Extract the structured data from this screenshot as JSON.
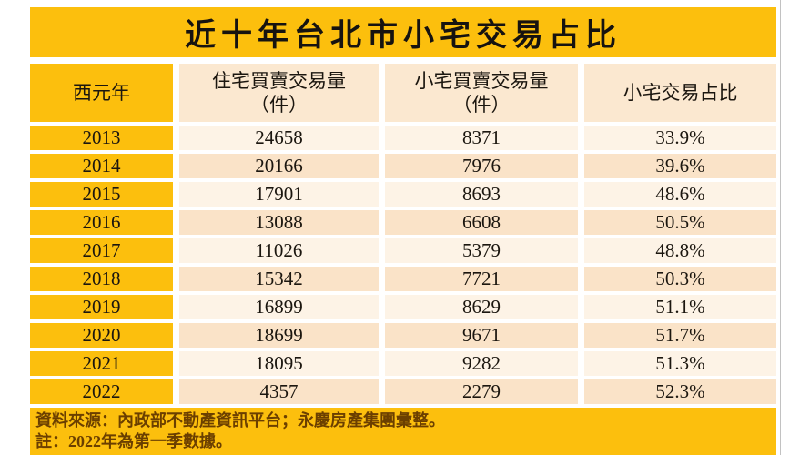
{
  "title": "近十年台北市小宅交易占比",
  "table": {
    "columns": {
      "year": "西元年",
      "total": "住宅買賣交易量\n（件）",
      "small": "小宅買賣交易量\n（件）",
      "ratio": "小宅交易占比"
    },
    "rows": [
      {
        "year": "2013",
        "total": "24658",
        "small": "8371",
        "ratio": "33.9%"
      },
      {
        "year": "2014",
        "total": "20166",
        "small": "7976",
        "ratio": "39.6%"
      },
      {
        "year": "2015",
        "total": "17901",
        "small": "8693",
        "ratio": "48.6%"
      },
      {
        "year": "2016",
        "total": "13088",
        "small": "6608",
        "ratio": "50.5%"
      },
      {
        "year": "2017",
        "total": "11026",
        "small": "5379",
        "ratio": "48.8%"
      },
      {
        "year": "2018",
        "total": "15342",
        "small": "7721",
        "ratio": "50.3%"
      },
      {
        "year": "2019",
        "total": "16899",
        "small": "8629",
        "ratio": "51.1%"
      },
      {
        "year": "2020",
        "total": "18699",
        "small": "9671",
        "ratio": "51.7%"
      },
      {
        "year": "2021",
        "total": "18095",
        "small": "9282",
        "ratio": "51.3%"
      },
      {
        "year": "2022",
        "total": "4357",
        "small": "2279",
        "ratio": "52.3%"
      }
    ]
  },
  "footer": {
    "source": "資料來源：內政部不動產資訊平台；永慶房產集團彙整。",
    "note": "註：2022年為第一季數據。"
  },
  "colors": {
    "accent_yellow": "#FCBF0D",
    "header_peach": "#FBE8D0",
    "row_light": "#FDF3E6",
    "row_peach": "#FAE3C8",
    "footer_text": "#6B3F00"
  },
  "chart_data": {
    "type": "table",
    "title": "近十年台北市小宅交易占比",
    "columns": [
      "西元年",
      "住宅買賣交易量（件）",
      "小宅買賣交易量（件）",
      "小宅交易占比"
    ],
    "rows": [
      [
        2013,
        24658,
        8371,
        "33.9%"
      ],
      [
        2014,
        20166,
        7976,
        "39.6%"
      ],
      [
        2015,
        17901,
        8693,
        "48.6%"
      ],
      [
        2016,
        13088,
        6608,
        "50.5%"
      ],
      [
        2017,
        11026,
        5379,
        "48.8%"
      ],
      [
        2018,
        15342,
        7721,
        "50.3%"
      ],
      [
        2019,
        16899,
        8629,
        "51.1%"
      ],
      [
        2020,
        18699,
        9671,
        "51.7%"
      ],
      [
        2021,
        18095,
        9282,
        "51.3%"
      ],
      [
        2022,
        4357,
        2279,
        "52.3%"
      ]
    ],
    "notes": [
      "資料來源：內政部不動產資訊平台；永慶房產集團彙整。",
      "註：2022年為第一季數據。"
    ]
  }
}
